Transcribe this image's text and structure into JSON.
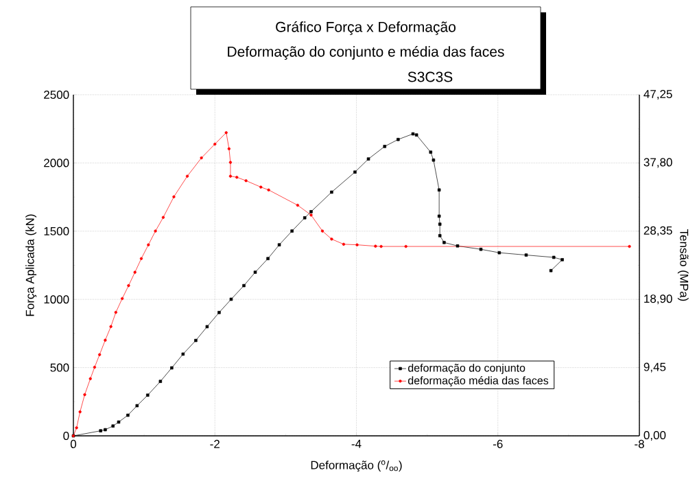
{
  "chart_data": {
    "type": "line",
    "title": "Gráfico Força x Deformação",
    "subtitle": "Deformação do conjunto e média das faces",
    "annotations": [
      "S3C3S"
    ],
    "xlabel": "Deformação ($^{o}$/$_{oo}$)",
    "ylabel": "Força Aplicada (kN)",
    "y2label": "Tensão (MPa)",
    "xlim": [
      0,
      -8
    ],
    "xticks": [
      0,
      -2,
      -4,
      -6,
      -8
    ],
    "ylim": [
      0,
      2500
    ],
    "yticks": [
      0,
      500,
      1000,
      1500,
      2000,
      2500
    ],
    "y2lim": [
      0,
      47.25
    ],
    "y2ticks": [
      {
        "value": 0,
        "label": "0,00"
      },
      {
        "value": 9.45,
        "label": "9,45"
      },
      {
        "value": 18.9,
        "label": "18,90"
      },
      {
        "value": 28.35,
        "label": "28,35"
      },
      {
        "value": 37.8,
        "label": "37,80"
      },
      {
        "value": 47.25,
        "label": "47,25"
      }
    ],
    "grid": true,
    "legend": "bottom right",
    "line_style": "solid",
    "series": [
      {
        "name": "deformação do conjunto",
        "color": "#000000",
        "marker": "square",
        "x": [
          0,
          -0.385,
          -0.45,
          -0.56,
          -0.64,
          -0.77,
          -0.9,
          -1.05,
          -1.23,
          -1.39,
          -1.55,
          -1.73,
          -1.89,
          -2.06,
          -2.23,
          -2.41,
          -2.57,
          -2.75,
          -2.91,
          -3.09,
          -3.27,
          -3.36,
          -3.65,
          -3.98,
          -4.17,
          -4.4,
          -4.59,
          -4.8,
          -4.85,
          -5.05,
          -5.09,
          -5.17,
          -5.17,
          -5.18,
          -5.18,
          -5.24,
          -5.43,
          -5.76,
          -6.02,
          -6.4,
          -6.79,
          -6.91,
          -6.75
        ],
        "values": [
          0,
          37,
          45,
          72,
          101,
          151,
          221,
          298,
          399,
          498,
          599,
          699,
          800,
          904,
          1001,
          1101,
          1199,
          1299,
          1400,
          1501,
          1598,
          1643,
          1786,
          1933,
          2029,
          2121,
          2172,
          2213,
          2205,
          2079,
          2021,
          1802,
          1610,
          1551,
          1467,
          1417,
          1392,
          1367,
          1342,
          1325,
          1308,
          1291,
          1211
        ]
      },
      {
        "name": "deformação média das faces",
        "color": "#ff0000",
        "marker": "circle",
        "x": [
          0,
          -0.045,
          -0.094,
          -0.16,
          -0.24,
          -0.3,
          -0.37,
          -0.45,
          -0.53,
          -0.6,
          -0.69,
          -0.78,
          -0.87,
          -0.96,
          -1.06,
          -1.16,
          -1.27,
          -1.42,
          -1.61,
          -1.81,
          -2.0,
          -2.16,
          -2.2,
          -2.22,
          -2.22,
          -2.31,
          -2.44,
          -2.65,
          -2.76,
          -3.17,
          -3.36,
          -3.52,
          -3.65,
          -3.82,
          -4.01,
          -4.27,
          -4.35,
          -4.7,
          -7.86
        ],
        "values": [
          0,
          59,
          176,
          302,
          419,
          503,
          595,
          701,
          801,
          905,
          1006,
          1101,
          1199,
          1299,
          1400,
          1501,
          1601,
          1752,
          1903,
          2037,
          2138,
          2222,
          2104,
          2004,
          1903,
          1895,
          1870,
          1823,
          1802,
          1690,
          1618,
          1501,
          1442,
          1404,
          1400,
          1390,
          1388,
          1388,
          1388
        ]
      }
    ]
  }
}
